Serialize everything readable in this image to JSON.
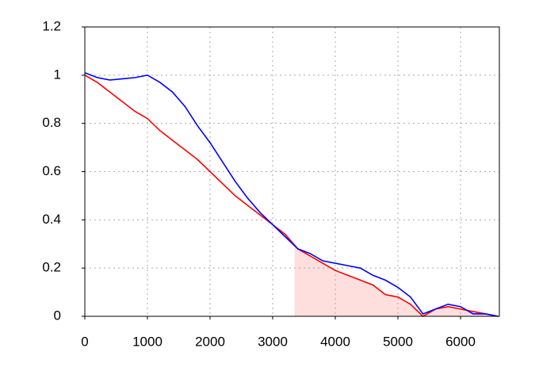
{
  "chart_data": {
    "type": "line",
    "x": [
      0,
      200,
      400,
      600,
      800,
      1000,
      1200,
      1400,
      1600,
      1800,
      2000,
      2200,
      2400,
      2600,
      2800,
      3000,
      3200,
      3400,
      3600,
      3800,
      4000,
      4200,
      4400,
      4600,
      4800,
      5000,
      5200,
      5400,
      5600,
      5800,
      6000,
      6200,
      6400,
      6600
    ],
    "series": [
      {
        "name": "blue",
        "color": "#0000ff",
        "values": [
          1.01,
          0.99,
          0.98,
          0.985,
          0.99,
          1.0,
          0.97,
          0.93,
          0.87,
          0.79,
          0.72,
          0.64,
          0.56,
          0.49,
          0.43,
          0.38,
          0.33,
          0.28,
          0.26,
          0.23,
          0.22,
          0.21,
          0.2,
          0.17,
          0.15,
          0.12,
          0.08,
          0.01,
          0.03,
          0.05,
          0.04,
          0.01,
          0.01,
          0.0
        ]
      },
      {
        "name": "red",
        "color": "#ff0000",
        "values": [
          1.0,
          0.97,
          0.93,
          0.89,
          0.85,
          0.82,
          0.77,
          0.73,
          0.69,
          0.65,
          0.6,
          0.55,
          0.5,
          0.46,
          0.42,
          0.38,
          0.34,
          0.28,
          0.25,
          0.22,
          0.19,
          0.17,
          0.15,
          0.13,
          0.09,
          0.08,
          0.05,
          0.0,
          0.03,
          0.04,
          0.03,
          0.02,
          0.01,
          0.0
        ]
      }
    ],
    "shade_from": 3350,
    "shade_color": "#ffdede",
    "xlim": [
      0,
      6620
    ],
    "ylim": [
      0,
      1.2
    ],
    "xticks": [
      0,
      1000,
      2000,
      3000,
      4000,
      5000,
      6000
    ],
    "yticks": [
      0,
      0.2,
      0.4,
      0.6,
      0.8,
      1,
      1.2
    ],
    "grid": true
  }
}
